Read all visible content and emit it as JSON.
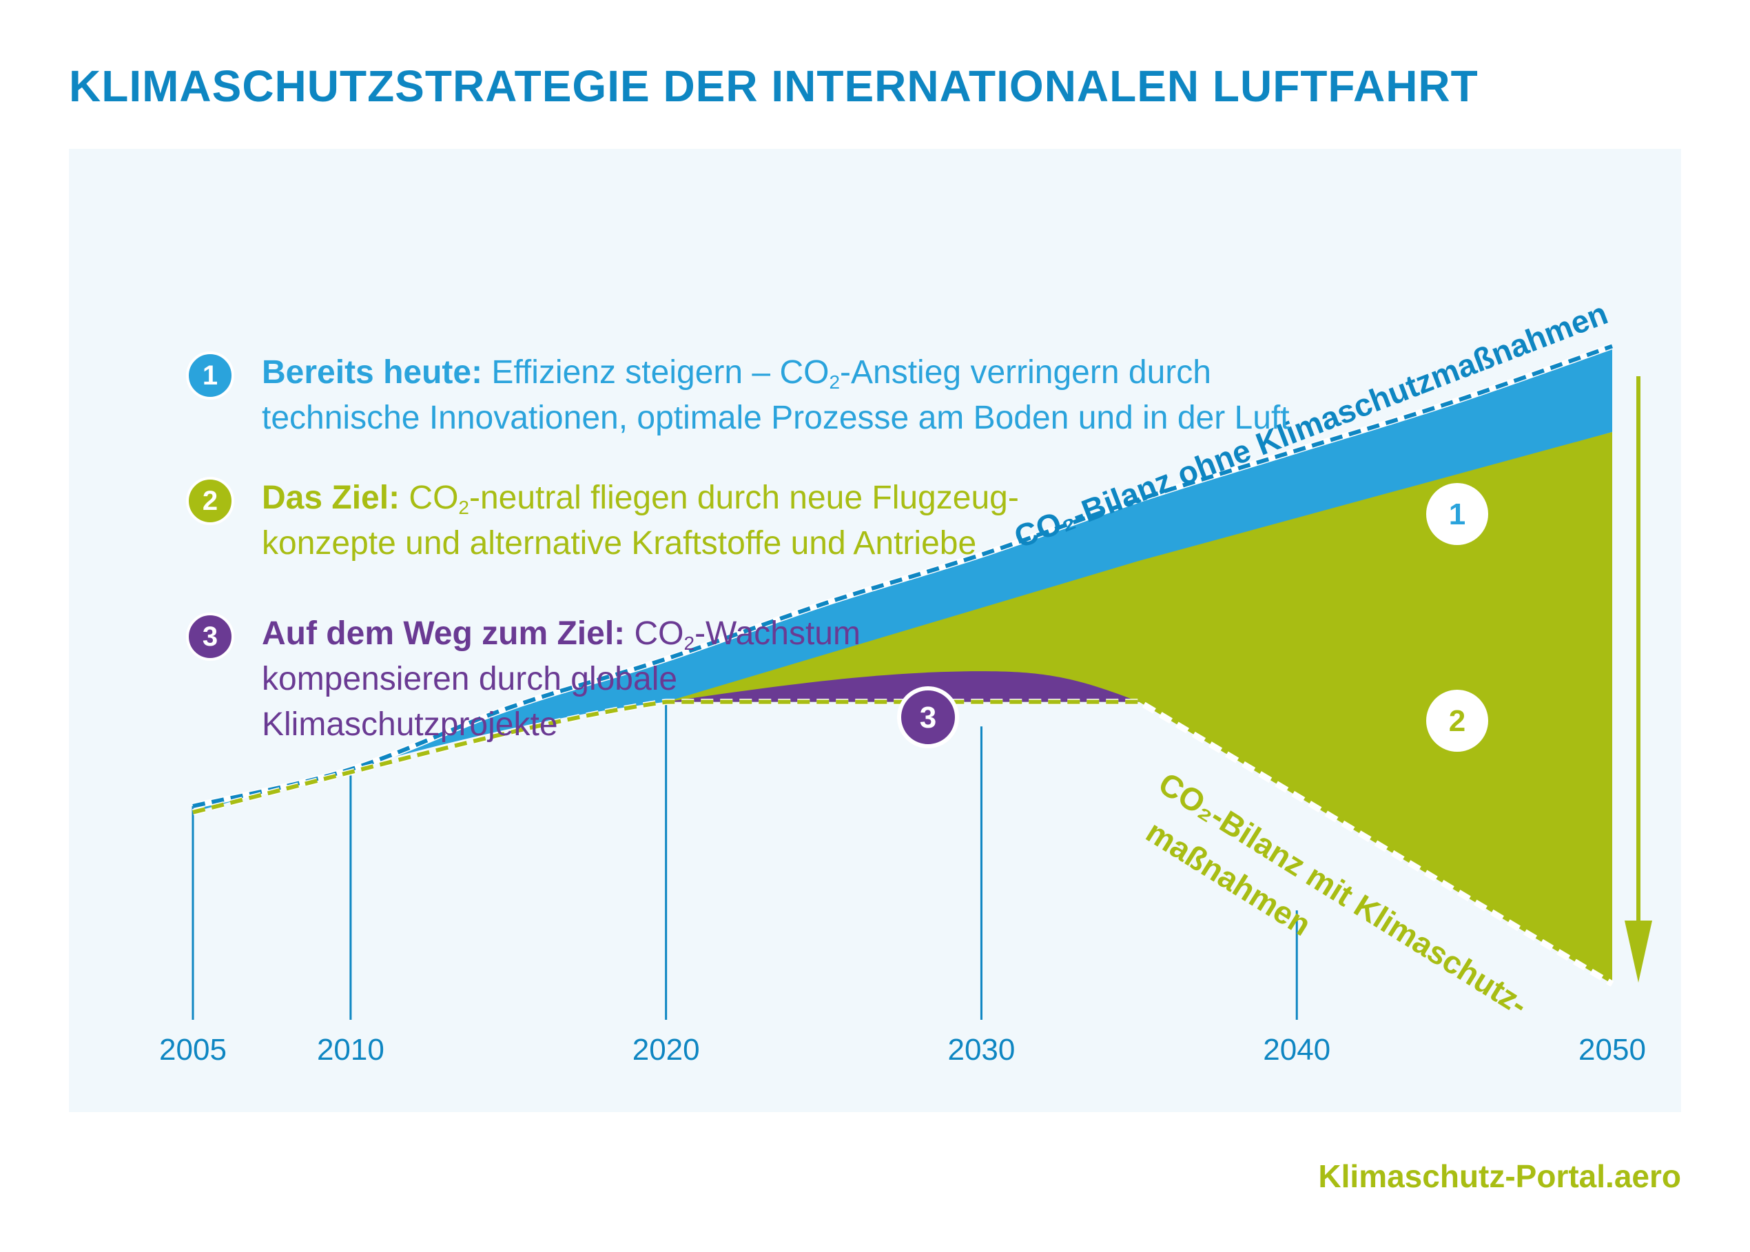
{
  "title": "KLIMASCHUTZSTRATEGIE DER INTERNATIONALEN LUFTFAHRT",
  "legend": [
    {
      "number": "1",
      "bold": "Bereits heute:",
      "text_a": " Effizienz steigern – CO",
      "sub": "2",
      "text_b": "-Anstieg verringern durch",
      "line2": "technische Innovationen, optimale Prozesse am Boden und in der Luft",
      "color": "#2aa3dc"
    },
    {
      "number": "2",
      "bold": "Das Ziel:",
      "text_a": " CO",
      "sub": "2",
      "text_b": "-neutral fliegen durch neue Flugzeug-",
      "line2": "konzepte und alternative Kraftstoffe und Antriebe",
      "color": "#a8bd13"
    },
    {
      "number": "3",
      "bold": "Auf dem Weg zum Ziel:",
      "text_a": " CO",
      "sub": "2",
      "text_b": "-Wachstum",
      "line2": "kompensieren durch globale",
      "line3": "Klimaschutzprojekte",
      "color": "#6a3a93"
    }
  ],
  "source": "Klimaschutz-Portal.aero",
  "colors": {
    "title": "#0e86c2",
    "blue": "#2aa3dc",
    "green": "#a8bd13",
    "purple": "#6a3a93",
    "axis": "#0e86c2",
    "panel": "#f1f8fc"
  },
  "chart_data": {
    "type": "area",
    "x_ticks": [
      2005,
      2010,
      2020,
      2030,
      2040,
      2050
    ],
    "xlim": [
      2005,
      2050
    ],
    "ylim": [
      0,
      100
    ],
    "y_axis_shown": false,
    "grid": false,
    "series": [
      {
        "name": "CO₂-Bilanz ohne Klimaschutzmaßnahmen",
        "style": "dashed-line",
        "x": [
          2005,
          2010,
          2015,
          2020,
          2025,
          2030,
          2035,
          2040,
          2045,
          2050
        ],
        "y": [
          29,
          35,
          45,
          53,
          62,
          70,
          79,
          87,
          95,
          104
        ]
      },
      {
        "name": "CO₂-Bilanz mit Klimaschutzmaßnahmen",
        "style": "dashed-line",
        "x": [
          2005,
          2010,
          2015,
          2020,
          2025,
          2030,
          2035,
          2040,
          2045,
          2050
        ],
        "y": [
          28,
          34,
          42,
          46,
          46,
          46,
          46,
          32,
          16,
          0
        ]
      }
    ],
    "area_labels": [
      "1",
      "2",
      "3"
    ]
  }
}
